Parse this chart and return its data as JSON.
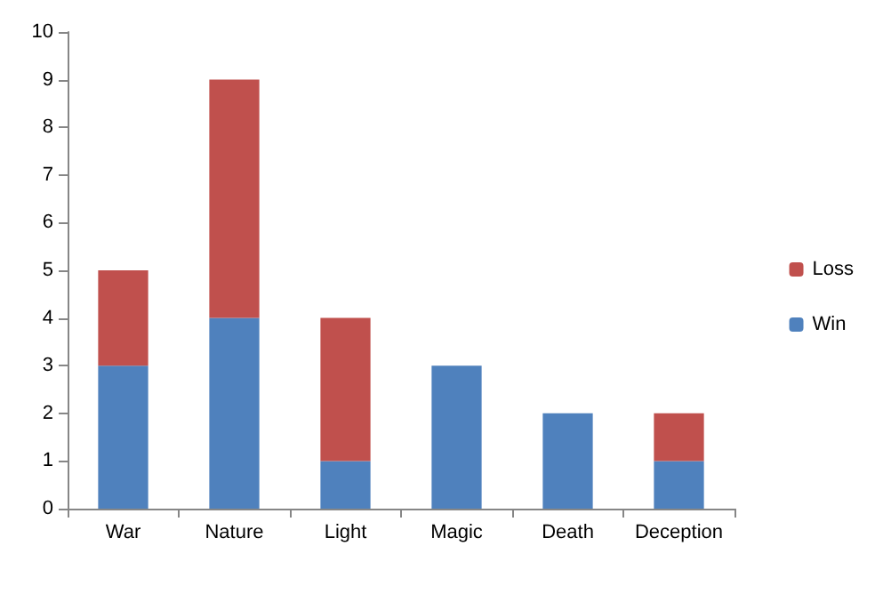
{
  "chart_data": {
    "type": "bar",
    "stacked": true,
    "categories": [
      "War",
      "Nature",
      "Light",
      "Magic",
      "Death",
      "Deception"
    ],
    "series": [
      {
        "name": "Win",
        "color": "#4f81bd",
        "values": [
          3,
          4,
          1,
          3,
          2,
          1
        ]
      },
      {
        "name": "Loss",
        "color": "#c0504d",
        "values": [
          2,
          5,
          3,
          0,
          0,
          1
        ]
      }
    ],
    "ylim": [
      0,
      10
    ],
    "yticks": [
      0,
      1,
      2,
      3,
      4,
      5,
      6,
      7,
      8,
      9,
      10
    ],
    "grid": false,
    "legend": "right"
  }
}
